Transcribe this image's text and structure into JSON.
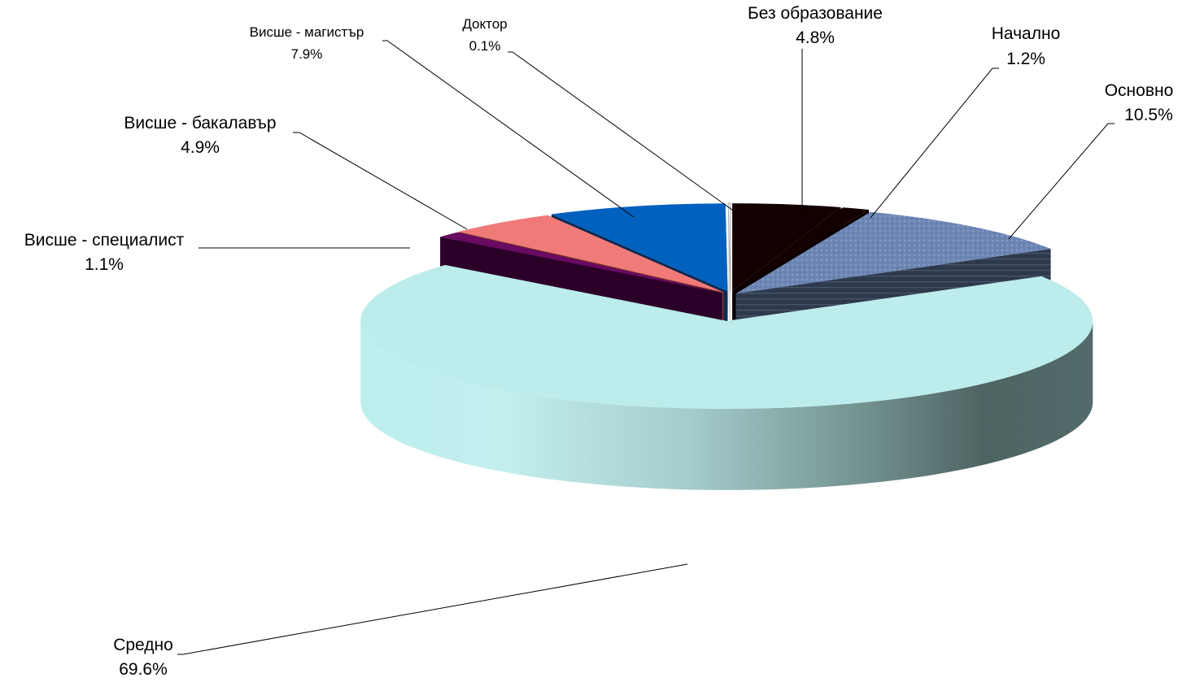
{
  "chart_data": {
    "type": "pie",
    "title": "",
    "legend": "none",
    "slices": [
      {
        "label": "Без образование",
        "value": 4.8,
        "value_label": "4.8%",
        "color": "#140000"
      },
      {
        "label": "Начално",
        "value": 1.2,
        "value_label": "1.2%",
        "color": "#140000"
      },
      {
        "label": "Основно",
        "value": 10.5,
        "value_label": "10.5%",
        "color": "#6f87b5"
      },
      {
        "label": "Средно",
        "value": 69.6,
        "value_label": "69.6%",
        "color": "#bcecec"
      },
      {
        "label": "Висше - специалист",
        "value": 1.1,
        "value_label": "1.1%",
        "color": "#6a0a62"
      },
      {
        "label": "Висше - бакалавър",
        "value": 4.9,
        "value_label": "4.9%",
        "color": "#f07a78"
      },
      {
        "label": "Висше - магистър",
        "value": 7.9,
        "value_label": "7.9%",
        "color": "#0061be"
      },
      {
        "label": "Доктор",
        "value": 0.1,
        "value_label": "0.1%",
        "color": "#ffffff"
      }
    ]
  }
}
